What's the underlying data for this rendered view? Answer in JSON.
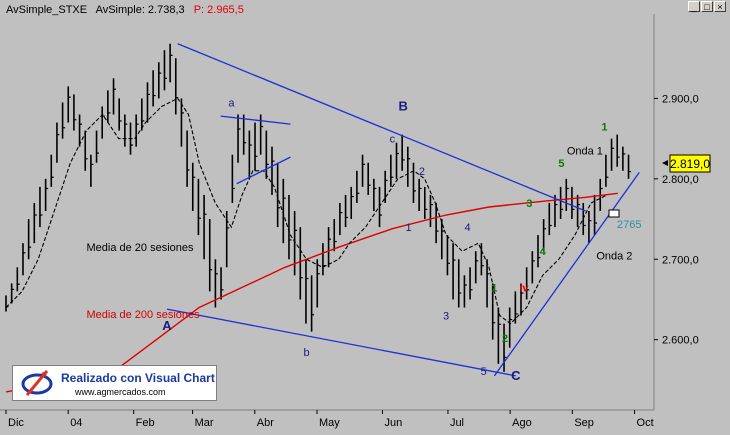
{
  "window": {
    "legend_prefix": "AvSimple_STXE",
    "legend_value": "AvSimple: 2.738,3",
    "legend_price": "P: 2.965,5",
    "legend_price_color": "#e00000",
    "buttons": [
      "_",
      "□",
      "×"
    ]
  },
  "logo": {
    "title": "Realizado con Visual Chart",
    "url": "www.agmercados.com",
    "icon": "visual-chart-logo"
  },
  "colors": {
    "background": "#c0c0c0",
    "price_bars": "#000000",
    "ma20": "#000000",
    "ma200": "#e00000",
    "trendlines": "#1f2fd6",
    "wave_labels": "#1a1a80",
    "green_labels": "#0a7a0a",
    "red_labels": "#d00000",
    "last_price_box": "#ffff00"
  },
  "chart_data": {
    "type": "bar",
    "title": "",
    "xlabel": "",
    "ylabel": "",
    "x_ticks": [
      "Dic",
      "04",
      "Feb",
      "Mar",
      "Abr",
      "May",
      "Jun",
      "Jul",
      "Ago",
      "Sep",
      "Oct"
    ],
    "y_ticks": [
      "2.900,0",
      "2.800,0",
      "2.700,0",
      "2.600,0"
    ],
    "ylim": [
      2520,
      3000
    ],
    "last_price": "2.819,0",
    "level_label": "2765",
    "grid": false,
    "series": [
      {
        "name": "Media de 200 sesiones",
        "points": [
          [
            0,
            2535
          ],
          [
            20,
            2560
          ],
          [
            28,
            2600
          ],
          [
            36,
            2640
          ],
          [
            44,
            2665
          ],
          [
            52,
            2690
          ],
          [
            62,
            2715
          ],
          [
            72,
            2738
          ],
          [
            82,
            2755
          ],
          [
            90,
            2765
          ],
          [
            100,
            2772
          ],
          [
            108,
            2777
          ],
          [
            114,
            2782
          ]
        ]
      },
      {
        "name": "Media de 20 sesiones",
        "points": [
          [
            0,
            2640
          ],
          [
            3,
            2660
          ],
          [
            6,
            2700
          ],
          [
            9,
            2760
          ],
          [
            12,
            2820
          ],
          [
            15,
            2860
          ],
          [
            18,
            2880
          ],
          [
            21,
            2850
          ],
          [
            24,
            2850
          ],
          [
            26,
            2870
          ],
          [
            29,
            2890
          ],
          [
            32,
            2900
          ],
          [
            34,
            2880
          ],
          [
            36,
            2820
          ],
          [
            39,
            2770
          ],
          [
            42,
            2740
          ],
          [
            44,
            2780
          ],
          [
            46,
            2810
          ],
          [
            48,
            2810
          ],
          [
            50,
            2790
          ],
          [
            53,
            2730
          ],
          [
            56,
            2700
          ],
          [
            59,
            2690
          ],
          [
            62,
            2700
          ],
          [
            64,
            2720
          ],
          [
            67,
            2740
          ],
          [
            70,
            2770
          ],
          [
            73,
            2800
          ],
          [
            76,
            2810
          ],
          [
            78,
            2800
          ],
          [
            80,
            2770
          ],
          [
            82,
            2730
          ],
          [
            85,
            2710
          ],
          [
            88,
            2720
          ],
          [
            90,
            2690
          ],
          [
            92,
            2630
          ],
          [
            94,
            2620
          ],
          [
            97,
            2640
          ],
          [
            100,
            2680
          ],
          [
            103,
            2700
          ],
          [
            106,
            2730
          ],
          [
            109,
            2770
          ],
          [
            112,
            2780
          ]
        ]
      }
    ],
    "annotations": [
      {
        "text": "a",
        "x": 42,
        "y": 2890,
        "kind": "wave"
      },
      {
        "text": "B",
        "x": 74,
        "y": 2885,
        "kind": "wave-major"
      },
      {
        "text": "c",
        "x": 72,
        "y": 2845,
        "kind": "wave"
      },
      {
        "text": "2",
        "x": 77.5,
        "y": 2805,
        "kind": "wave"
      },
      {
        "text": "1",
        "x": 75,
        "y": 2735,
        "kind": "wave"
      },
      {
        "text": "4",
        "x": 86,
        "y": 2735,
        "kind": "wave"
      },
      {
        "text": "3",
        "x": 82,
        "y": 2625,
        "kind": "wave"
      },
      {
        "text": "5",
        "x": 89,
        "y": 2556,
        "kind": "wave"
      },
      {
        "text": "C",
        "x": 95,
        "y": 2550,
        "kind": "wave-major"
      },
      {
        "text": "A",
        "x": 30,
        "y": 2612,
        "kind": "wave-major"
      },
      {
        "text": "b",
        "x": 56,
        "y": 2580,
        "kind": "wave"
      },
      {
        "text": "1",
        "x": 91,
        "y": 2660,
        "kind": "green"
      },
      {
        "text": "2",
        "x": 93,
        "y": 2597,
        "kind": "green"
      },
      {
        "text": "3",
        "x": 97.5,
        "y": 2765,
        "kind": "green"
      },
      {
        "text": "4",
        "x": 100,
        "y": 2705,
        "kind": "green"
      },
      {
        "text": "5",
        "x": 103.5,
        "y": 2815,
        "kind": "green"
      },
      {
        "text": "1",
        "x": 111.5,
        "y": 2860,
        "kind": "green"
      },
      {
        "text": "iv",
        "x": 96.5,
        "y": 2660,
        "kind": "red"
      },
      {
        "text": "Onda 1",
        "x": 104.5,
        "y": 2830,
        "kind": "label"
      },
      {
        "text": "Onda 2",
        "x": 110,
        "y": 2700,
        "kind": "label"
      },
      {
        "text": "Media de 20 sesiones",
        "x": 15,
        "y": 2710,
        "kind": "ma20-label"
      },
      {
        "text": "Media de 200 sesiones",
        "x": 15,
        "y": 2627,
        "kind": "ma200-label"
      }
    ],
    "trendlines": [
      {
        "name": "upper-channel",
        "from": [
          32,
          2968
        ],
        "to": [
          108,
          2760
        ]
      },
      {
        "name": "lower-channel",
        "from": [
          30,
          2638
        ],
        "to": [
          95,
          2555
        ]
      },
      {
        "name": "uptrend-support",
        "from": [
          91,
          2555
        ],
        "to": [
          118,
          2808
        ]
      },
      {
        "name": "triangle-top",
        "from": [
          40,
          2878
        ],
        "to": [
          53,
          2868
        ]
      },
      {
        "name": "triangle-bottom",
        "from": [
          43,
          2794
        ],
        "to": [
          53,
          2827
        ]
      }
    ],
    "bars": [
      [
        2655,
        2635
      ],
      [
        2670,
        2645
      ],
      [
        2690,
        2660
      ],
      [
        2720,
        2680
      ],
      [
        2750,
        2700
      ],
      [
        2770,
        2720
      ],
      [
        2790,
        2740
      ],
      [
        2800,
        2760
      ],
      [
        2830,
        2790
      ],
      [
        2870,
        2820
      ],
      [
        2895,
        2850
      ],
      [
        2915,
        2870
      ],
      [
        2905,
        2860
      ],
      [
        2880,
        2840
      ],
      [
        2860,
        2810
      ],
      [
        2830,
        2790
      ],
      [
        2860,
        2820
      ],
      [
        2890,
        2850
      ],
      [
        2910,
        2870
      ],
      [
        2925,
        2880
      ],
      [
        2900,
        2860
      ],
      [
        2880,
        2840
      ],
      [
        2870,
        2830
      ],
      [
        2880,
        2840
      ],
      [
        2900,
        2860
      ],
      [
        2920,
        2870
      ],
      [
        2935,
        2890
      ],
      [
        2945,
        2900
      ],
      [
        2960,
        2910
      ],
      [
        2968,
        2920
      ],
      [
        2950,
        2880
      ],
      [
        2900,
        2840
      ],
      [
        2860,
        2790
      ],
      [
        2820,
        2760
      ],
      [
        2800,
        2730
      ],
      [
        2780,
        2700
      ],
      [
        2750,
        2660
      ],
      [
        2700,
        2640
      ],
      [
        2690,
        2650
      ],
      [
        2760,
        2690
      ],
      [
        2830,
        2770
      ],
      [
        2880,
        2820
      ],
      [
        2880,
        2830
      ],
      [
        2860,
        2800
      ],
      [
        2870,
        2810
      ],
      [
        2880,
        2830
      ],
      [
        2860,
        2800
      ],
      [
        2840,
        2780
      ],
      [
        2820,
        2740
      ],
      [
        2800,
        2720
      ],
      [
        2780,
        2700
      ],
      [
        2760,
        2680
      ],
      [
        2740,
        2650
      ],
      [
        2700,
        2620
      ],
      [
        2680,
        2610
      ],
      [
        2700,
        2640
      ],
      [
        2720,
        2680
      ],
      [
        2740,
        2690
      ],
      [
        2750,
        2710
      ],
      [
        2770,
        2730
      ],
      [
        2780,
        2740
      ],
      [
        2790,
        2750
      ],
      [
        2810,
        2770
      ],
      [
        2830,
        2790
      ],
      [
        2820,
        2780
      ],
      [
        2800,
        2760
      ],
      [
        2790,
        2740
      ],
      [
        2810,
        2770
      ],
      [
        2830,
        2790
      ],
      [
        2845,
        2800
      ],
      [
        2855,
        2810
      ],
      [
        2840,
        2790
      ],
      [
        2820,
        2770
      ],
      [
        2800,
        2760
      ],
      [
        2790,
        2750
      ],
      [
        2780,
        2740
      ],
      [
        2770,
        2720
      ],
      [
        2750,
        2700
      ],
      [
        2730,
        2680
      ],
      [
        2720,
        2650
      ],
      [
        2700,
        2640
      ],
      [
        2680,
        2640
      ],
      [
        2690,
        2650
      ],
      [
        2710,
        2670
      ],
      [
        2720,
        2680
      ],
      [
        2700,
        2640
      ],
      [
        2670,
        2600
      ],
      [
        2640,
        2570
      ],
      [
        2620,
        2560
      ],
      [
        2640,
        2590
      ],
      [
        2660,
        2620
      ],
      [
        2670,
        2630
      ],
      [
        2690,
        2650
      ],
      [
        2710,
        2670
      ],
      [
        2730,
        2690
      ],
      [
        2750,
        2710
      ],
      [
        2770,
        2730
      ],
      [
        2780,
        2740
      ],
      [
        2790,
        2750
      ],
      [
        2800,
        2760
      ],
      [
        2790,
        2750
      ],
      [
        2780,
        2740
      ],
      [
        2770,
        2730
      ],
      [
        2760,
        2720
      ],
      [
        2780,
        2730
      ],
      [
        2800,
        2760
      ],
      [
        2830,
        2790
      ],
      [
        2850,
        2810
      ],
      [
        2855,
        2815
      ],
      [
        2840,
        2810
      ],
      [
        2830,
        2800
      ]
    ]
  }
}
